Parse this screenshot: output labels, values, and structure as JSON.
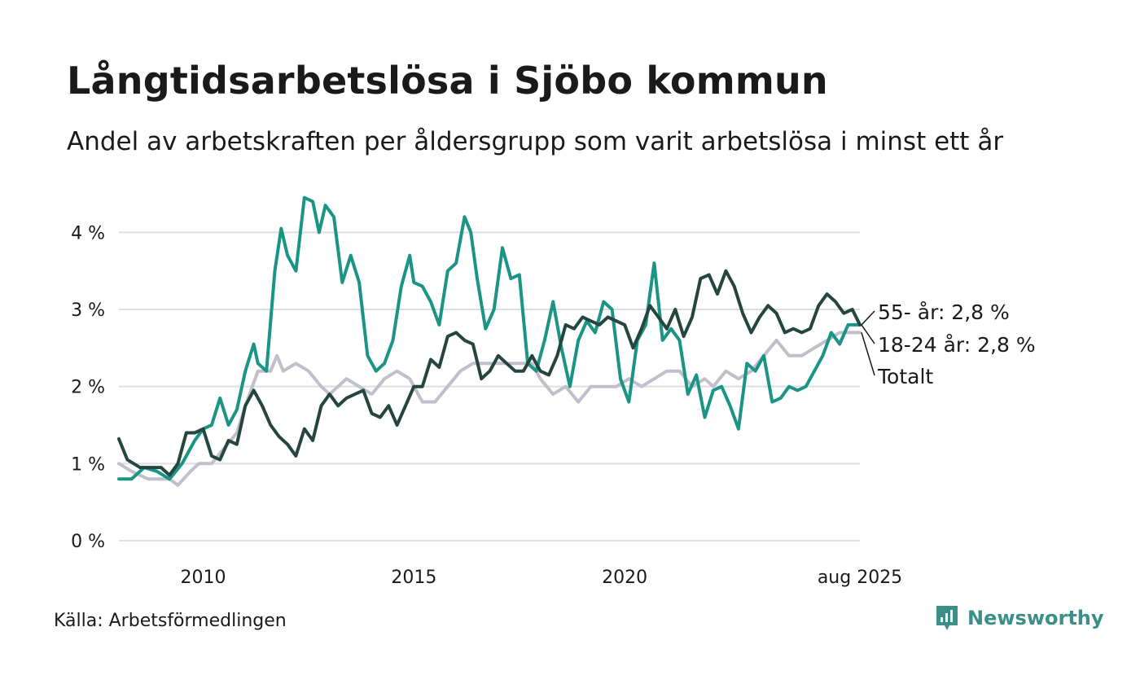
{
  "header": {
    "title": "Långtidsarbetslösa i Sjöbo kommun",
    "subtitle": "Andel av arbetskraften per åldersgrupp som varit arbetslösa i minst ett år"
  },
  "footer": {
    "source": "Källa: Arbetsförmedlingen",
    "brand": "Newsworthy",
    "brand_icon": "bar-chart-badge-icon"
  },
  "colors": {
    "young": "#1a9484",
    "old": "#24463f",
    "total": "#c2bfcc",
    "grid": "#dedede",
    "brand": "#3c8f86"
  },
  "chart_data": {
    "type": "line",
    "title": "Långtidsarbetslösa i Sjöbo kommun",
    "subtitle": "Andel av arbetskraften per åldersgrupp som varit arbetslösa i minst ett år",
    "xlabel": "",
    "ylabel": "",
    "x_range": [
      2008.0,
      2025.58
    ],
    "ylim": [
      0,
      4.5
    ],
    "y_ticks": [
      0,
      1,
      2,
      3,
      4
    ],
    "y_tick_labels": [
      "0 %",
      "1 %",
      "2 %",
      "3 %",
      "4 %"
    ],
    "x_ticks": [
      2010,
      2015,
      2020,
      2025.58
    ],
    "x_tick_labels": [
      "2010",
      "2015",
      "2020",
      "aug 2025"
    ],
    "grid": "horizontal",
    "legend": "end-labels-right",
    "series": [
      {
        "name": "Totalt",
        "end_label": "Totalt",
        "color": "#c2bfcc",
        "points": [
          [
            2008.0,
            1.0
          ],
          [
            2008.3,
            0.9
          ],
          [
            2008.7,
            0.8
          ],
          [
            2009.0,
            0.8
          ],
          [
            2009.2,
            0.8
          ],
          [
            2009.4,
            0.72
          ],
          [
            2009.7,
            0.9
          ],
          [
            2009.9,
            1.0
          ],
          [
            2010.2,
            1.0
          ],
          [
            2010.5,
            1.2
          ],
          [
            2010.8,
            1.4
          ],
          [
            2011.0,
            1.75
          ],
          [
            2011.3,
            2.2
          ],
          [
            2011.6,
            2.2
          ],
          [
            2011.75,
            2.4
          ],
          [
            2011.9,
            2.2
          ],
          [
            2012.2,
            2.3
          ],
          [
            2012.5,
            2.2
          ],
          [
            2012.8,
            2.0
          ],
          [
            2013.0,
            1.9
          ],
          [
            2013.4,
            2.1
          ],
          [
            2013.7,
            2.0
          ],
          [
            2014.0,
            1.9
          ],
          [
            2014.3,
            2.1
          ],
          [
            2014.6,
            2.2
          ],
          [
            2014.9,
            2.1
          ],
          [
            2015.2,
            1.8
          ],
          [
            2015.5,
            1.8
          ],
          [
            2015.8,
            2.0
          ],
          [
            2016.1,
            2.2
          ],
          [
            2016.4,
            2.3
          ],
          [
            2016.8,
            2.3
          ],
          [
            2017.1,
            2.3
          ],
          [
            2017.5,
            2.3
          ],
          [
            2017.8,
            2.3
          ],
          [
            2018.0,
            2.1
          ],
          [
            2018.3,
            1.9
          ],
          [
            2018.6,
            2.0
          ],
          [
            2018.9,
            1.8
          ],
          [
            2019.2,
            2.0
          ],
          [
            2019.5,
            2.0
          ],
          [
            2019.8,
            2.0
          ],
          [
            2020.1,
            2.1
          ],
          [
            2020.4,
            2.0
          ],
          [
            2020.7,
            2.1
          ],
          [
            2021.0,
            2.2
          ],
          [
            2021.3,
            2.2
          ],
          [
            2021.6,
            2.0
          ],
          [
            2021.9,
            2.1
          ],
          [
            2022.1,
            2.0
          ],
          [
            2022.4,
            2.2
          ],
          [
            2022.7,
            2.1
          ],
          [
            2023.0,
            2.2
          ],
          [
            2023.3,
            2.4
          ],
          [
            2023.6,
            2.6
          ],
          [
            2023.9,
            2.4
          ],
          [
            2024.2,
            2.4
          ],
          [
            2024.5,
            2.5
          ],
          [
            2024.8,
            2.6
          ],
          [
            2025.1,
            2.7
          ],
          [
            2025.3,
            2.7
          ],
          [
            2025.58,
            2.7
          ]
        ]
      },
      {
        "name": "18-24 år",
        "end_label": "18-24 år: 2,8 %",
        "color": "#1a9484",
        "points": [
          [
            2008.0,
            0.8
          ],
          [
            2008.3,
            0.8
          ],
          [
            2008.6,
            0.95
          ],
          [
            2008.9,
            0.9
          ],
          [
            2009.2,
            0.8
          ],
          [
            2009.5,
            1.0
          ],
          [
            2009.8,
            1.3
          ],
          [
            2010.0,
            1.45
          ],
          [
            2010.2,
            1.5
          ],
          [
            2010.4,
            1.85
          ],
          [
            2010.6,
            1.5
          ],
          [
            2010.8,
            1.7
          ],
          [
            2011.0,
            2.2
          ],
          [
            2011.2,
            2.55
          ],
          [
            2011.3,
            2.3
          ],
          [
            2011.5,
            2.2
          ],
          [
            2011.7,
            3.5
          ],
          [
            2011.85,
            4.05
          ],
          [
            2012.0,
            3.7
          ],
          [
            2012.2,
            3.5
          ],
          [
            2012.4,
            4.45
          ],
          [
            2012.6,
            4.4
          ],
          [
            2012.75,
            4.0
          ],
          [
            2012.9,
            4.35
          ],
          [
            2013.1,
            4.2
          ],
          [
            2013.3,
            3.35
          ],
          [
            2013.5,
            3.7
          ],
          [
            2013.7,
            3.35
          ],
          [
            2013.9,
            2.4
          ],
          [
            2014.1,
            2.2
          ],
          [
            2014.3,
            2.3
          ],
          [
            2014.5,
            2.6
          ],
          [
            2014.7,
            3.3
          ],
          [
            2014.9,
            3.7
          ],
          [
            2015.0,
            3.35
          ],
          [
            2015.2,
            3.3
          ],
          [
            2015.4,
            3.1
          ],
          [
            2015.6,
            2.8
          ],
          [
            2015.8,
            3.5
          ],
          [
            2016.0,
            3.6
          ],
          [
            2016.2,
            4.2
          ],
          [
            2016.35,
            4.0
          ],
          [
            2016.5,
            3.4
          ],
          [
            2016.7,
            2.75
          ],
          [
            2016.9,
            3.0
          ],
          [
            2017.1,
            3.8
          ],
          [
            2017.3,
            3.4
          ],
          [
            2017.5,
            3.45
          ],
          [
            2017.7,
            2.3
          ],
          [
            2017.9,
            2.2
          ],
          [
            2018.1,
            2.6
          ],
          [
            2018.3,
            3.1
          ],
          [
            2018.5,
            2.5
          ],
          [
            2018.7,
            2.0
          ],
          [
            2018.9,
            2.6
          ],
          [
            2019.1,
            2.85
          ],
          [
            2019.3,
            2.7
          ],
          [
            2019.5,
            3.1
          ],
          [
            2019.7,
            3.0
          ],
          [
            2019.9,
            2.1
          ],
          [
            2020.1,
            1.8
          ],
          [
            2020.3,
            2.6
          ],
          [
            2020.5,
            2.8
          ],
          [
            2020.7,
            3.6
          ],
          [
            2020.9,
            2.6
          ],
          [
            2021.1,
            2.75
          ],
          [
            2021.3,
            2.6
          ],
          [
            2021.5,
            1.9
          ],
          [
            2021.7,
            2.15
          ],
          [
            2021.9,
            1.6
          ],
          [
            2022.1,
            1.95
          ],
          [
            2022.3,
            2.0
          ],
          [
            2022.5,
            1.75
          ],
          [
            2022.7,
            1.45
          ],
          [
            2022.9,
            2.3
          ],
          [
            2023.1,
            2.2
          ],
          [
            2023.3,
            2.4
          ],
          [
            2023.5,
            1.8
          ],
          [
            2023.7,
            1.85
          ],
          [
            2023.9,
            2.0
          ],
          [
            2024.1,
            1.95
          ],
          [
            2024.3,
            2.0
          ],
          [
            2024.5,
            2.2
          ],
          [
            2024.7,
            2.4
          ],
          [
            2024.9,
            2.7
          ],
          [
            2025.1,
            2.55
          ],
          [
            2025.3,
            2.8
          ],
          [
            2025.58,
            2.8
          ]
        ]
      },
      {
        "name": "55- år",
        "end_label": "55- år: 2,8 %",
        "color": "#24463f",
        "points": [
          [
            2008.0,
            1.32
          ],
          [
            2008.2,
            1.05
          ],
          [
            2008.5,
            0.95
          ],
          [
            2008.8,
            0.95
          ],
          [
            2009.0,
            0.95
          ],
          [
            2009.2,
            0.85
          ],
          [
            2009.4,
            1.0
          ],
          [
            2009.6,
            1.4
          ],
          [
            2009.8,
            1.4
          ],
          [
            2010.0,
            1.45
          ],
          [
            2010.2,
            1.1
          ],
          [
            2010.4,
            1.05
          ],
          [
            2010.6,
            1.3
          ],
          [
            2010.8,
            1.25
          ],
          [
            2011.0,
            1.75
          ],
          [
            2011.2,
            1.95
          ],
          [
            2011.4,
            1.75
          ],
          [
            2011.6,
            1.5
          ],
          [
            2011.8,
            1.35
          ],
          [
            2012.0,
            1.25
          ],
          [
            2012.2,
            1.1
          ],
          [
            2012.4,
            1.45
          ],
          [
            2012.6,
            1.3
          ],
          [
            2012.8,
            1.75
          ],
          [
            2013.0,
            1.9
          ],
          [
            2013.2,
            1.75
          ],
          [
            2013.4,
            1.85
          ],
          [
            2013.6,
            1.9
          ],
          [
            2013.8,
            1.95
          ],
          [
            2014.0,
            1.65
          ],
          [
            2014.2,
            1.6
          ],
          [
            2014.4,
            1.75
          ],
          [
            2014.6,
            1.5
          ],
          [
            2014.8,
            1.75
          ],
          [
            2015.0,
            2.0
          ],
          [
            2015.2,
            2.0
          ],
          [
            2015.4,
            2.35
          ],
          [
            2015.6,
            2.25
          ],
          [
            2015.8,
            2.65
          ],
          [
            2016.0,
            2.7
          ],
          [
            2016.2,
            2.6
          ],
          [
            2016.4,
            2.55
          ],
          [
            2016.6,
            2.1
          ],
          [
            2016.8,
            2.2
          ],
          [
            2017.0,
            2.4
          ],
          [
            2017.2,
            2.3
          ],
          [
            2017.4,
            2.2
          ],
          [
            2017.6,
            2.2
          ],
          [
            2017.8,
            2.4
          ],
          [
            2018.0,
            2.2
          ],
          [
            2018.2,
            2.15
          ],
          [
            2018.4,
            2.4
          ],
          [
            2018.6,
            2.8
          ],
          [
            2018.8,
            2.75
          ],
          [
            2019.0,
            2.9
          ],
          [
            2019.2,
            2.85
          ],
          [
            2019.4,
            2.8
          ],
          [
            2019.6,
            2.9
          ],
          [
            2019.8,
            2.85
          ],
          [
            2020.0,
            2.8
          ],
          [
            2020.2,
            2.5
          ],
          [
            2020.4,
            2.75
          ],
          [
            2020.6,
            3.05
          ],
          [
            2020.8,
            2.9
          ],
          [
            2021.0,
            2.75
          ],
          [
            2021.2,
            3.0
          ],
          [
            2021.4,
            2.65
          ],
          [
            2021.6,
            2.9
          ],
          [
            2021.8,
            3.4
          ],
          [
            2022.0,
            3.45
          ],
          [
            2022.2,
            3.2
          ],
          [
            2022.4,
            3.5
          ],
          [
            2022.6,
            3.3
          ],
          [
            2022.8,
            2.95
          ],
          [
            2023.0,
            2.7
          ],
          [
            2023.2,
            2.9
          ],
          [
            2023.4,
            3.05
          ],
          [
            2023.6,
            2.95
          ],
          [
            2023.8,
            2.7
          ],
          [
            2024.0,
            2.75
          ],
          [
            2024.2,
            2.7
          ],
          [
            2024.4,
            2.75
          ],
          [
            2024.6,
            3.05
          ],
          [
            2024.8,
            3.2
          ],
          [
            2025.0,
            3.1
          ],
          [
            2025.2,
            2.95
          ],
          [
            2025.4,
            3.0
          ],
          [
            2025.58,
            2.8
          ]
        ]
      }
    ]
  }
}
